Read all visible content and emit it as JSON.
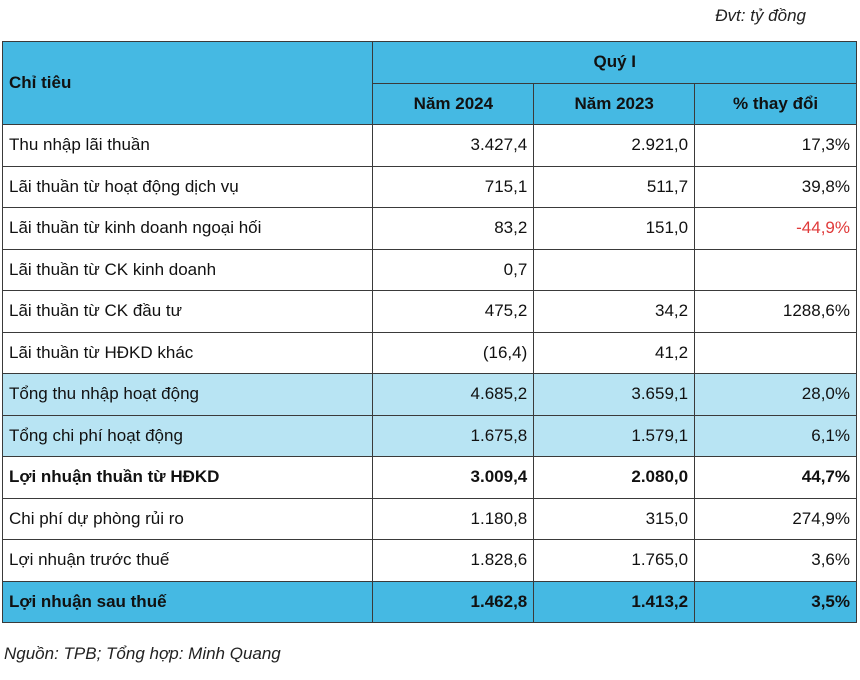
{
  "unit_label": "Đvt: tỷ đồng",
  "source_note": "Nguồn: TPB; Tổng hợp: Minh Quang",
  "table": {
    "header": {
      "label": "Chỉ tiêu",
      "group": "Quý I",
      "columns": [
        "Năm 2024",
        "Năm 2023",
        "% thay đổi"
      ]
    },
    "rows": [
      {
        "label": "Thu nhập lãi thuần",
        "y2024": "3.427,4",
        "y2023": "2.921,0",
        "change": "17,3%",
        "style": "normal",
        "negative": false
      },
      {
        "label": "Lãi thuần từ hoạt động dịch vụ",
        "y2024": "715,1",
        "y2023": "511,7",
        "change": "39,8%",
        "style": "normal",
        "negative": false
      },
      {
        "label": "Lãi thuần từ kinh doanh ngoại hối",
        "y2024": "83,2",
        "y2023": "151,0",
        "change": "-44,9%",
        "style": "normal",
        "negative": true
      },
      {
        "label": "Lãi thuần từ CK kinh doanh",
        "y2024": "0,7",
        "y2023": "",
        "change": "",
        "style": "normal",
        "negative": false
      },
      {
        "label": "Lãi thuần từ CK đầu tư",
        "y2024": "475,2",
        "y2023": "34,2",
        "change": "1288,6%",
        "style": "normal",
        "negative": false
      },
      {
        "label": "Lãi thuần từ HĐKD khác",
        "y2024": "(16,4)",
        "y2023": "41,2",
        "change": "",
        "style": "normal",
        "negative": false
      },
      {
        "label": "Tổng thu nhập hoạt động",
        "y2024": "4.685,2",
        "y2023": "3.659,1",
        "change": "28,0%",
        "style": "light",
        "negative": false
      },
      {
        "label": "Tổng chi phí hoạt động",
        "y2024": "1.675,8",
        "y2023": "1.579,1",
        "change": "6,1%",
        "style": "light",
        "negative": false
      },
      {
        "label": "Lợi nhuận thuần từ HĐKD",
        "y2024": "3.009,4",
        "y2023": "2.080,0",
        "change": "44,7%",
        "style": "bold",
        "negative": false
      },
      {
        "label": "Chi phí dự phòng rủi ro",
        "y2024": "1.180,8",
        "y2023": "315,0",
        "change": "274,9%",
        "style": "normal",
        "negative": false
      },
      {
        "label": "Lợi nhuận trước thuế",
        "y2024": "1.828,6",
        "y2023": "1.765,0",
        "change": "3,6%",
        "style": "normal",
        "negative": false
      },
      {
        "label": "Lợi nhuận sau thuế",
        "y2024": "1.462,8",
        "y2023": "1.413,2",
        "change": "3,5%",
        "style": "total",
        "negative": false
      }
    ]
  }
}
